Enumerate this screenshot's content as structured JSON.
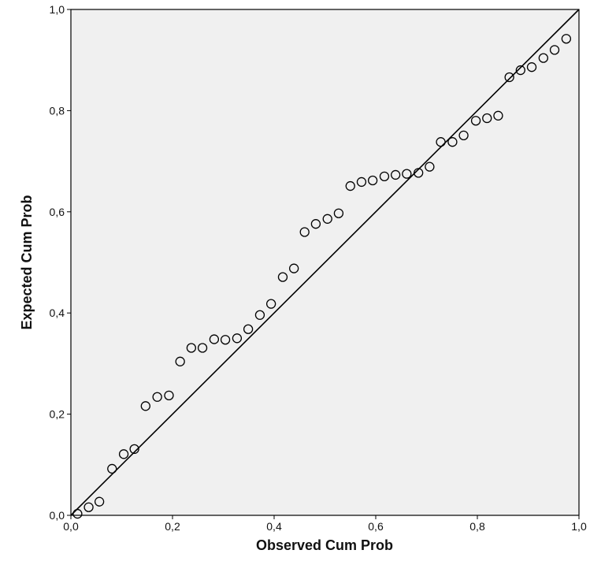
{
  "chart_data": {
    "type": "scatter",
    "title": "",
    "xlabel": "Observed Cum Prob",
    "ylabel": "Expected Cum Prob",
    "xlim": [
      0.0,
      1.0
    ],
    "ylim": [
      0.0,
      1.0
    ],
    "x_ticks": [
      "0,0",
      "0,2",
      "0,4",
      "0,6",
      "0,8",
      "1,0"
    ],
    "y_ticks": [
      "0,0",
      "0,2",
      "0,4",
      "0,6",
      "0,8",
      "1,0"
    ],
    "grid": false,
    "reference_line": {
      "from": [
        0,
        0
      ],
      "to": [
        1,
        1
      ]
    },
    "plot_background": "#f0f0f0",
    "marker_color": "#000000",
    "series": [
      {
        "points": [
          [
            0.013,
            0.003
          ],
          [
            0.035,
            0.016
          ],
          [
            0.056,
            0.027
          ],
          [
            0.081,
            0.092
          ],
          [
            0.104,
            0.121
          ],
          [
            0.125,
            0.131
          ],
          [
            0.147,
            0.216
          ],
          [
            0.17,
            0.234
          ],
          [
            0.193,
            0.237
          ],
          [
            0.215,
            0.304
          ],
          [
            0.237,
            0.331
          ],
          [
            0.259,
            0.331
          ],
          [
            0.282,
            0.348
          ],
          [
            0.304,
            0.347
          ],
          [
            0.327,
            0.35
          ],
          [
            0.349,
            0.368
          ],
          [
            0.372,
            0.396
          ],
          [
            0.394,
            0.418
          ],
          [
            0.417,
            0.471
          ],
          [
            0.439,
            0.488
          ],
          [
            0.46,
            0.56
          ],
          [
            0.482,
            0.576
          ],
          [
            0.505,
            0.586
          ],
          [
            0.527,
            0.597
          ],
          [
            0.55,
            0.651
          ],
          [
            0.572,
            0.659
          ],
          [
            0.594,
            0.662
          ],
          [
            0.617,
            0.67
          ],
          [
            0.639,
            0.673
          ],
          [
            0.661,
            0.675
          ],
          [
            0.684,
            0.677
          ],
          [
            0.706,
            0.689
          ],
          [
            0.728,
            0.738
          ],
          [
            0.751,
            0.738
          ],
          [
            0.773,
            0.751
          ],
          [
            0.797,
            0.78
          ],
          [
            0.819,
            0.785
          ],
          [
            0.841,
            0.79
          ],
          [
            0.863,
            0.866
          ],
          [
            0.885,
            0.88
          ],
          [
            0.907,
            0.886
          ],
          [
            0.93,
            0.904
          ],
          [
            0.952,
            0.92
          ],
          [
            0.975,
            0.942
          ]
        ]
      }
    ]
  }
}
